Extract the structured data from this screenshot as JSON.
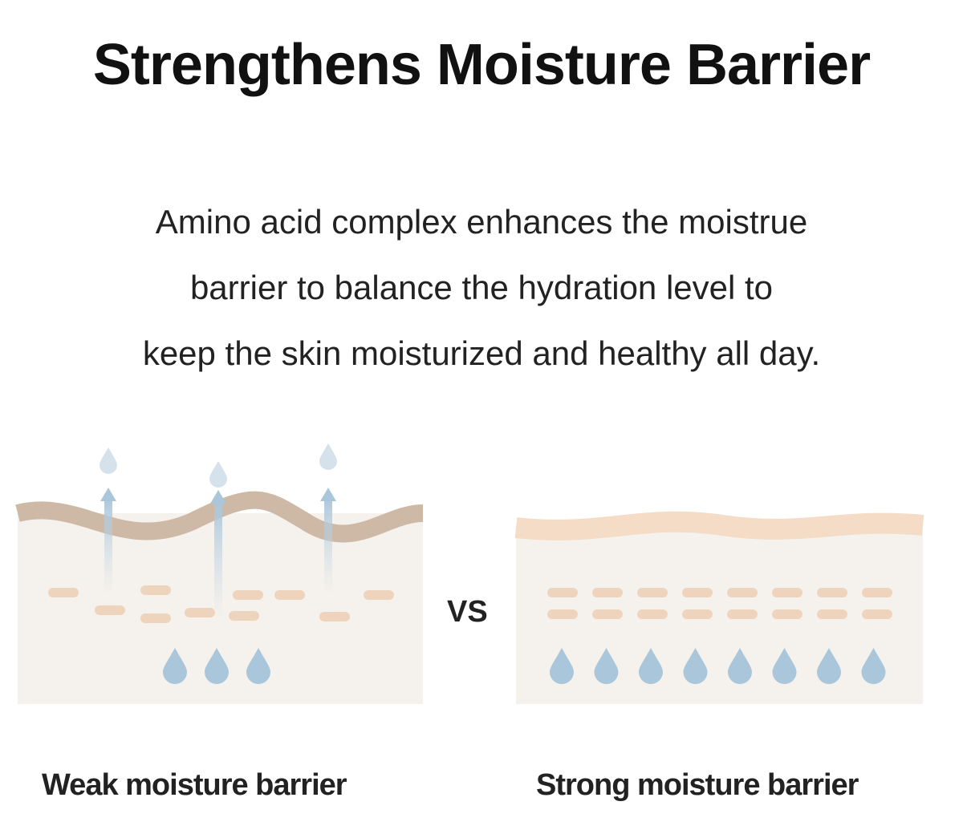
{
  "header": {
    "title": "Strengthens Moisture Barrier"
  },
  "description": [
    "Amino acid complex enhances the moistrue",
    "barrier to balance the hydration level to",
    "keep the skin moisturized and healthy all day."
  ],
  "comparison": {
    "left": "Weak moisture barrier",
    "separator": "VS",
    "right": "Strong moisture barrier"
  }
}
